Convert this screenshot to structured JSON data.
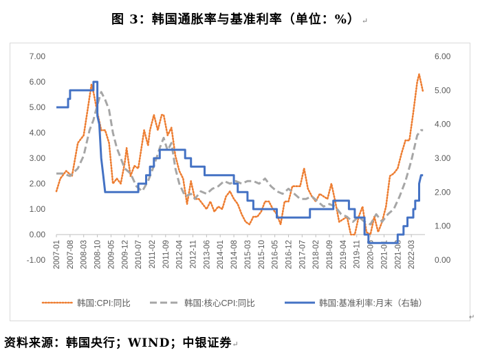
{
  "header": {
    "title": "图 3：韩国通胀率与基准利率（单位：%）",
    "return_mark": "↵"
  },
  "footer": {
    "source": "资料来源：韩国央行；WIND；中银证券",
    "return_mark": "↵"
  },
  "chart_data": {
    "type": "line",
    "title": "图 3：韩国通胀率与基准利率（单位：%）",
    "x_tick_labels": [
      "2007-01",
      "2007-08",
      "2008-03",
      "2008-10",
      "2009-05",
      "2009-12",
      "2010-07",
      "2011-02",
      "2011-09",
      "2012-04",
      "2012-11",
      "2013-06",
      "2014-01",
      "2014-08",
      "2015-03",
      "2015-10",
      "2016-05",
      "2016-12",
      "2017-07",
      "2018-02",
      "2018-09",
      "2019-04",
      "2019-11",
      "2020-06",
      "2021-01",
      "2021-08",
      "2022-03"
    ],
    "y_left_ticks": [
      "-1.00",
      "0.00",
      "1.00",
      "2.00",
      "3.00",
      "4.00",
      "5.00",
      "6.00",
      "7.00"
    ],
    "y_right_ticks": [
      "0.00",
      "1.00",
      "2.00",
      "3.00",
      "4.00",
      "5.00",
      "6.00"
    ],
    "ylim_left": [
      -1,
      7
    ],
    "ylim_right": [
      0,
      6
    ],
    "grid": false,
    "legend_position": "bottom",
    "series": [
      {
        "name": "韩国:CPI:同比",
        "axis": "left",
        "color": "#ed7d31",
        "style": "dotted",
        "points": [
          [
            "2007-01",
            1.7
          ],
          [
            "2007-03",
            2.2
          ],
          [
            "2007-06",
            2.5
          ],
          [
            "2007-09",
            2.3
          ],
          [
            "2007-12",
            3.6
          ],
          [
            "2008-03",
            3.9
          ],
          [
            "2008-05",
            4.9
          ],
          [
            "2008-07",
            5.9
          ],
          [
            "2008-08",
            5.6
          ],
          [
            "2008-10",
            4.8
          ],
          [
            "2008-12",
            4.1
          ],
          [
            "2009-02",
            4.1
          ],
          [
            "2009-04",
            3.6
          ],
          [
            "2009-06",
            2.0
          ],
          [
            "2009-08",
            2.2
          ],
          [
            "2009-10",
            2.0
          ],
          [
            "2009-12",
            2.8
          ],
          [
            "2010-01",
            3.4
          ],
          [
            "2010-03",
            2.3
          ],
          [
            "2010-05",
            2.7
          ],
          [
            "2010-07",
            2.6
          ],
          [
            "2010-09",
            3.6
          ],
          [
            "2010-10",
            4.1
          ],
          [
            "2010-12",
            3.5
          ],
          [
            "2011-01",
            4.1
          ],
          [
            "2011-03",
            4.7
          ],
          [
            "2011-05",
            4.1
          ],
          [
            "2011-07",
            4.7
          ],
          [
            "2011-08",
            4.7
          ],
          [
            "2011-10",
            3.9
          ],
          [
            "2011-12",
            4.2
          ],
          [
            "2012-02",
            3.1
          ],
          [
            "2012-04",
            2.5
          ],
          [
            "2012-06",
            2.2
          ],
          [
            "2012-08",
            1.2
          ],
          [
            "2012-10",
            2.1
          ],
          [
            "2012-12",
            1.4
          ],
          [
            "2013-02",
            1.4
          ],
          [
            "2013-04",
            1.2
          ],
          [
            "2013-06",
            1.0
          ],
          [
            "2013-08",
            1.3
          ],
          [
            "2013-10",
            0.9
          ],
          [
            "2013-12",
            1.1
          ],
          [
            "2014-02",
            1.0
          ],
          [
            "2014-04",
            1.5
          ],
          [
            "2014-06",
            1.7
          ],
          [
            "2014-08",
            1.4
          ],
          [
            "2014-10",
            1.2
          ],
          [
            "2014-12",
            0.8
          ],
          [
            "2015-02",
            0.5
          ],
          [
            "2015-04",
            0.4
          ],
          [
            "2015-06",
            0.7
          ],
          [
            "2015-08",
            0.7
          ],
          [
            "2015-10",
            0.9
          ],
          [
            "2015-12",
            1.3
          ],
          [
            "2016-02",
            1.3
          ],
          [
            "2016-04",
            1.0
          ],
          [
            "2016-06",
            0.8
          ],
          [
            "2016-08",
            0.4
          ],
          [
            "2016-10",
            1.3
          ],
          [
            "2016-12",
            1.3
          ],
          [
            "2017-02",
            1.9
          ],
          [
            "2017-04",
            1.9
          ],
          [
            "2017-06",
            1.9
          ],
          [
            "2017-08",
            2.6
          ],
          [
            "2017-10",
            1.8
          ],
          [
            "2017-12",
            1.5
          ],
          [
            "2018-02",
            1.3
          ],
          [
            "2018-04",
            1.6
          ],
          [
            "2018-06",
            1.5
          ],
          [
            "2018-08",
            1.4
          ],
          [
            "2018-10",
            2.0
          ],
          [
            "2018-12",
            1.3
          ],
          [
            "2019-02",
            0.5
          ],
          [
            "2019-04",
            0.6
          ],
          [
            "2019-06",
            0.7
          ],
          [
            "2019-08",
            0.0
          ],
          [
            "2019-10",
            0.0
          ],
          [
            "2019-12",
            0.7
          ],
          [
            "2020-02",
            1.1
          ],
          [
            "2020-04",
            0.1
          ],
          [
            "2020-06",
            0.0
          ],
          [
            "2020-08",
            0.7
          ],
          [
            "2020-10",
            0.1
          ],
          [
            "2020-12",
            0.5
          ],
          [
            "2021-02",
            1.1
          ],
          [
            "2021-04",
            2.3
          ],
          [
            "2021-06",
            2.4
          ],
          [
            "2021-08",
            2.6
          ],
          [
            "2021-10",
            3.2
          ],
          [
            "2021-12",
            3.7
          ],
          [
            "2022-02",
            3.7
          ],
          [
            "2022-04",
            4.8
          ],
          [
            "2022-06",
            6.0
          ],
          [
            "2022-07",
            6.3
          ],
          [
            "2022-09",
            5.6
          ]
        ]
      },
      {
        "name": "韩国:核心CPI:同比",
        "axis": "left",
        "color": "#a6a6a6",
        "style": "dashed",
        "points": [
          [
            "2007-01",
            2.4
          ],
          [
            "2007-04",
            2.4
          ],
          [
            "2007-08",
            2.3
          ],
          [
            "2007-12",
            2.6
          ],
          [
            "2008-03",
            3.1
          ],
          [
            "2008-06",
            4.1
          ],
          [
            "2008-08",
            4.5
          ],
          [
            "2008-10",
            5.1
          ],
          [
            "2008-12",
            5.6
          ],
          [
            "2009-02",
            5.3
          ],
          [
            "2009-04",
            4.9
          ],
          [
            "2009-06",
            4.0
          ],
          [
            "2009-08",
            3.4
          ],
          [
            "2009-10",
            3.0
          ],
          [
            "2009-12",
            2.6
          ],
          [
            "2010-03",
            2.4
          ],
          [
            "2010-06",
            1.9
          ],
          [
            "2010-09",
            1.7
          ],
          [
            "2010-12",
            2.1
          ],
          [
            "2011-03",
            2.7
          ],
          [
            "2011-06",
            3.4
          ],
          [
            "2011-08",
            3.8
          ],
          [
            "2011-10",
            3.3
          ],
          [
            "2011-12",
            3.6
          ],
          [
            "2012-02",
            2.6
          ],
          [
            "2012-04",
            2.0
          ],
          [
            "2012-07",
            1.5
          ],
          [
            "2012-10",
            1.6
          ],
          [
            "2012-12",
            1.4
          ],
          [
            "2013-03",
            1.7
          ],
          [
            "2013-06",
            1.6
          ],
          [
            "2013-09",
            1.8
          ],
          [
            "2013-12",
            1.9
          ],
          [
            "2014-03",
            2.1
          ],
          [
            "2014-06",
            2.0
          ],
          [
            "2014-09",
            2.1
          ],
          [
            "2014-12",
            2.0
          ],
          [
            "2015-03",
            2.1
          ],
          [
            "2015-06",
            2.1
          ],
          [
            "2015-09",
            2.0
          ],
          [
            "2015-12",
            2.2
          ],
          [
            "2016-03",
            1.9
          ],
          [
            "2016-06",
            1.7
          ],
          [
            "2016-09",
            1.6
          ],
          [
            "2016-12",
            1.8
          ],
          [
            "2017-03",
            1.6
          ],
          [
            "2017-06",
            1.4
          ],
          [
            "2017-09",
            1.4
          ],
          [
            "2017-12",
            1.5
          ],
          [
            "2018-03",
            1.3
          ],
          [
            "2018-06",
            1.1
          ],
          [
            "2018-09",
            1.2
          ],
          [
            "2018-12",
            1.1
          ],
          [
            "2019-03",
            0.8
          ],
          [
            "2019-06",
            0.7
          ],
          [
            "2019-09",
            0.5
          ],
          [
            "2019-12",
            0.7
          ],
          [
            "2020-03",
            0.5
          ],
          [
            "2020-06",
            0.4
          ],
          [
            "2020-09",
            0.8
          ],
          [
            "2020-12",
            0.5
          ],
          [
            "2021-03",
            0.8
          ],
          [
            "2021-06",
            1.0
          ],
          [
            "2021-09",
            1.5
          ],
          [
            "2021-12",
            2.1
          ],
          [
            "2022-03",
            2.9
          ],
          [
            "2022-06",
            3.9
          ],
          [
            "2022-08",
            4.1
          ],
          [
            "2022-09",
            4.1
          ]
        ]
      },
      {
        "name": "韩国:基准利率:月末（右轴）",
        "axis": "right",
        "color": "#4472c4",
        "style": "solid",
        "points": [
          [
            "2007-01",
            4.5
          ],
          [
            "2007-07",
            4.5
          ],
          [
            "2007-07",
            4.75
          ],
          [
            "2007-08",
            4.75
          ],
          [
            "2007-08",
            5.0
          ],
          [
            "2008-08",
            5.0
          ],
          [
            "2008-08",
            5.25
          ],
          [
            "2008-10",
            5.25
          ],
          [
            "2008-10",
            4.25
          ],
          [
            "2008-11",
            4.0
          ],
          [
            "2008-12",
            3.0
          ],
          [
            "2009-01",
            2.5
          ],
          [
            "2009-02",
            2.0
          ],
          [
            "2010-07",
            2.0
          ],
          [
            "2010-07",
            2.25
          ],
          [
            "2010-11",
            2.25
          ],
          [
            "2010-11",
            2.5
          ],
          [
            "2011-01",
            2.5
          ],
          [
            "2011-01",
            2.75
          ],
          [
            "2011-03",
            2.75
          ],
          [
            "2011-03",
            3.0
          ],
          [
            "2011-06",
            3.0
          ],
          [
            "2011-06",
            3.25
          ],
          [
            "2012-07",
            3.25
          ],
          [
            "2012-07",
            3.0
          ],
          [
            "2012-10",
            3.0
          ],
          [
            "2012-10",
            2.75
          ],
          [
            "2013-05",
            2.75
          ],
          [
            "2013-05",
            2.5
          ],
          [
            "2014-08",
            2.5
          ],
          [
            "2014-08",
            2.25
          ],
          [
            "2014-10",
            2.25
          ],
          [
            "2014-10",
            2.0
          ],
          [
            "2015-03",
            2.0
          ],
          [
            "2015-03",
            1.75
          ],
          [
            "2015-06",
            1.75
          ],
          [
            "2015-06",
            1.5
          ],
          [
            "2016-06",
            1.5
          ],
          [
            "2016-06",
            1.25
          ],
          [
            "2017-11",
            1.25
          ],
          [
            "2017-11",
            1.5
          ],
          [
            "2018-11",
            1.5
          ],
          [
            "2018-11",
            1.75
          ],
          [
            "2019-07",
            1.75
          ],
          [
            "2019-07",
            1.5
          ],
          [
            "2019-10",
            1.5
          ],
          [
            "2019-10",
            1.25
          ],
          [
            "2020-03",
            1.25
          ],
          [
            "2020-03",
            0.75
          ],
          [
            "2020-05",
            0.75
          ],
          [
            "2020-05",
            0.5
          ],
          [
            "2021-08",
            0.5
          ],
          [
            "2021-08",
            0.75
          ],
          [
            "2021-11",
            0.75
          ],
          [
            "2021-11",
            1.0
          ],
          [
            "2022-01",
            1.0
          ],
          [
            "2022-01",
            1.25
          ],
          [
            "2022-04",
            1.25
          ],
          [
            "2022-04",
            1.5
          ],
          [
            "2022-05",
            1.5
          ],
          [
            "2022-05",
            1.75
          ],
          [
            "2022-07",
            1.75
          ],
          [
            "2022-07",
            2.25
          ],
          [
            "2022-08",
            2.5
          ],
          [
            "2022-09",
            2.5
          ]
        ]
      }
    ]
  }
}
